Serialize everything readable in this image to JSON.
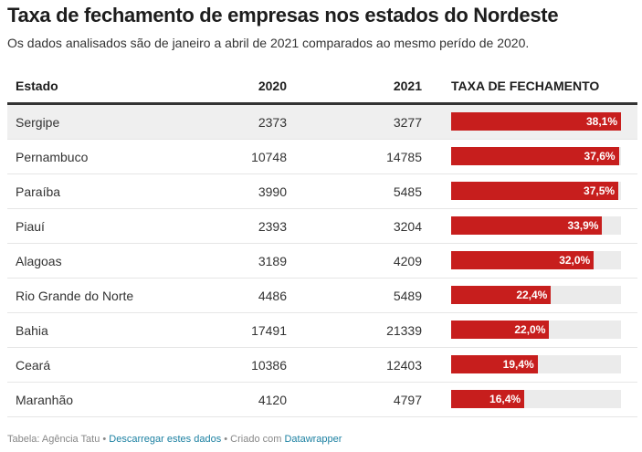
{
  "header": {
    "title": "Taxa de fechamento de empresas nos estados do Nordeste",
    "subtitle": "Os dados analisados são de janeiro a abril de 2021 comparados ao mesmo perído de 2020."
  },
  "footer": {
    "source": "Tabela: Agência Tatu",
    "sep1": " • ",
    "download_link": "Descarregar estes dados",
    "sep2": " • Criado com ",
    "tool_link": "Datawrapper"
  },
  "colors": {
    "bar": "#c71e1d",
    "track": "#ebebeb",
    "highlight_row": "#efefef",
    "link": "#1d81a2"
  },
  "chart_data": {
    "type": "table",
    "title": "Taxa de fechamento de empresas nos estados do Nordeste",
    "columns": [
      "Estado",
      "2020",
      "2021",
      "TAXA DE FECHAMENTO"
    ],
    "bar_range": [
      0,
      38.1
    ],
    "rows": [
      {
        "state": "Sergipe",
        "y2020": "2373",
        "y2021": "3277",
        "rate": 38.1,
        "rate_label": "38,1%",
        "highlight": true
      },
      {
        "state": "Pernambuco",
        "y2020": "10748",
        "y2021": "14785",
        "rate": 37.6,
        "rate_label": "37,6%"
      },
      {
        "state": "Paraíba",
        "y2020": "3990",
        "y2021": "5485",
        "rate": 37.5,
        "rate_label": "37,5%"
      },
      {
        "state": "Piauí",
        "y2020": "2393",
        "y2021": "3204",
        "rate": 33.9,
        "rate_label": "33,9%"
      },
      {
        "state": "Alagoas",
        "y2020": "3189",
        "y2021": "4209",
        "rate": 32.0,
        "rate_label": "32,0%"
      },
      {
        "state": "Rio Grande do Norte",
        "y2020": "4486",
        "y2021": "5489",
        "rate": 22.4,
        "rate_label": "22,4%"
      },
      {
        "state": "Bahia",
        "y2020": "17491",
        "y2021": "21339",
        "rate": 22.0,
        "rate_label": "22,0%"
      },
      {
        "state": "Ceará",
        "y2020": "10386",
        "y2021": "12403",
        "rate": 19.4,
        "rate_label": "19,4%"
      },
      {
        "state": "Maranhão",
        "y2020": "4120",
        "y2021": "4797",
        "rate": 16.4,
        "rate_label": "16,4%"
      }
    ]
  }
}
